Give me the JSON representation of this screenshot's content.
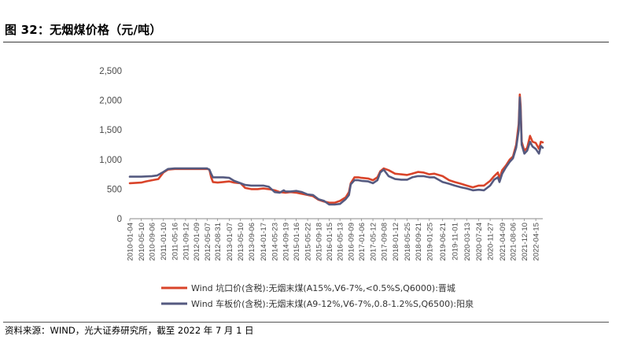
{
  "figure": {
    "title": "图 32：无烟煤价格（元/吨）",
    "source": "资料来源：WIND，光大证券研究所，截至 2022 年 7 月 1 日"
  },
  "chart_data": {
    "type": "line",
    "title": "",
    "xlabel": "",
    "ylabel": "",
    "ylim": [
      0,
      2500
    ],
    "yticks": [
      0,
      500,
      1000,
      1500,
      2000,
      2500
    ],
    "ytick_labels": [
      "0",
      "500",
      "1,000",
      "1,500",
      "2,000",
      "2,500"
    ],
    "grid": false,
    "legend_position": "bottom",
    "xticks": [
      "2010-01-04",
      "2010-05-10",
      "2010-09-06",
      "2011-01-10",
      "2011-05-16",
      "2011-09-12",
      "2012-01-09",
      "2012-05-07",
      "2012-08-31",
      "2013-01-07",
      "2013-05-10",
      "2013-09-06",
      "2014-01-17",
      "2014-05-23",
      "2014-09-19",
      "2015-01-16",
      "2015-05-22",
      "2015-09-18",
      "2016-01-15",
      "2016-05-13",
      "2016-09-09",
      "2017-01-06",
      "2017-05-12",
      "2017-09-08",
      "2018-01-12",
      "2018-05-25",
      "2018-09-21",
      "2019-01-25",
      "2019-06-21",
      "2019-11-01",
      "2020-03-13",
      "2020-07-24",
      "2020-11-27",
      "2021-04-09",
      "2021-08-06",
      "2021-12-10",
      "2022-04-15"
    ],
    "series": [
      {
        "name": "Wind 坑口价(含税):无烟末煤(A15%,V6-7%,<0.5%S,Q6000):晋城",
        "color": "#d9442a",
        "points": [
          [
            "2010-01-04",
            600
          ],
          [
            "2010-05-10",
            610
          ],
          [
            "2010-07-01",
            630
          ],
          [
            "2010-09-06",
            650
          ],
          [
            "2010-11-15",
            670
          ],
          [
            "2011-01-10",
            780
          ],
          [
            "2011-03-01",
            830
          ],
          [
            "2011-05-16",
            840
          ],
          [
            "2011-09-12",
            840
          ],
          [
            "2012-01-09",
            840
          ],
          [
            "2012-05-07",
            840
          ],
          [
            "2012-06-01",
            830
          ],
          [
            "2012-06-20",
            700
          ],
          [
            "2012-07-10",
            620
          ],
          [
            "2012-08-31",
            610
          ],
          [
            "2012-11-01",
            620
          ],
          [
            "2013-01-07",
            630
          ],
          [
            "2013-03-01",
            610
          ],
          [
            "2013-05-10",
            600
          ],
          [
            "2013-07-01",
            520
          ],
          [
            "2013-09-06",
            500
          ],
          [
            "2013-11-15",
            500
          ],
          [
            "2014-01-17",
            510
          ],
          [
            "2014-03-20",
            500
          ],
          [
            "2014-05-23",
            480
          ],
          [
            "2014-07-20",
            450
          ],
          [
            "2014-09-19",
            440
          ],
          [
            "2014-11-15",
            450
          ],
          [
            "2015-01-16",
            440
          ],
          [
            "2015-03-20",
            420
          ],
          [
            "2015-05-22",
            400
          ],
          [
            "2015-07-20",
            380
          ],
          [
            "2015-09-18",
            320
          ],
          [
            "2015-11-20",
            290
          ],
          [
            "2016-01-15",
            270
          ],
          [
            "2016-03-15",
            270
          ],
          [
            "2016-05-13",
            300
          ],
          [
            "2016-07-15",
            360
          ],
          [
            "2016-08-20",
            450
          ],
          [
            "2016-09-09",
            600
          ],
          [
            "2016-10-20",
            700
          ],
          [
            "2016-12-01",
            700
          ],
          [
            "2017-01-06",
            690
          ],
          [
            "2017-03-20",
            680
          ],
          [
            "2017-05-12",
            650
          ],
          [
            "2017-07-01",
            700
          ],
          [
            "2017-08-01",
            800
          ],
          [
            "2017-09-08",
            850
          ],
          [
            "2017-11-01",
            820
          ],
          [
            "2018-01-12",
            760
          ],
          [
            "2018-03-20",
            750
          ],
          [
            "2018-05-25",
            740
          ],
          [
            "2018-07-20",
            760
          ],
          [
            "2018-09-21",
            790
          ],
          [
            "2018-11-20",
            780
          ],
          [
            "2019-01-25",
            750
          ],
          [
            "2019-03-20",
            760
          ],
          [
            "2019-06-21",
            720
          ],
          [
            "2019-09-01",
            650
          ],
          [
            "2019-11-01",
            620
          ],
          [
            "2020-01-10",
            590
          ],
          [
            "2020-03-13",
            560
          ],
          [
            "2020-05-20",
            530
          ],
          [
            "2020-07-24",
            560
          ],
          [
            "2020-09-20",
            560
          ],
          [
            "2020-11-27",
            640
          ],
          [
            "2021-01-10",
            720
          ],
          [
            "2021-02-20",
            780
          ],
          [
            "2021-03-10",
            680
          ],
          [
            "2021-04-09",
            820
          ],
          [
            "2021-05-20",
            900
          ],
          [
            "2021-07-01",
            1000
          ],
          [
            "2021-08-06",
            1050
          ],
          [
            "2021-09-10",
            1250
          ],
          [
            "2021-10-08",
            1600
          ],
          [
            "2021-10-20",
            2100
          ],
          [
            "2021-10-30",
            1900
          ],
          [
            "2021-11-10",
            1300
          ],
          [
            "2021-12-10",
            1150
          ],
          [
            "2022-01-10",
            1200
          ],
          [
            "2022-02-10",
            1400
          ],
          [
            "2022-03-10",
            1300
          ],
          [
            "2022-04-15",
            1280
          ],
          [
            "2022-05-20",
            1180
          ],
          [
            "2022-06-10",
            1300
          ],
          [
            "2022-07-01",
            1290
          ]
        ]
      },
      {
        "name": "Wind 车板价(含税):无烟末煤(A9-12%,V6-7%,0.8-1.2%S,Q6500):阳泉",
        "color": "#555a80",
        "points": [
          [
            "2010-01-04",
            710
          ],
          [
            "2010-05-10",
            710
          ],
          [
            "2010-09-06",
            720
          ],
          [
            "2010-11-01",
            730
          ],
          [
            "2011-01-10",
            790
          ],
          [
            "2011-03-01",
            840
          ],
          [
            "2011-05-16",
            850
          ],
          [
            "2011-09-12",
            850
          ],
          [
            "2012-01-09",
            850
          ],
          [
            "2012-05-07",
            850
          ],
          [
            "2012-06-01",
            830
          ],
          [
            "2012-06-20",
            760
          ],
          [
            "2012-07-10",
            700
          ],
          [
            "2012-08-31",
            700
          ],
          [
            "2012-11-01",
            700
          ],
          [
            "2013-01-07",
            690
          ],
          [
            "2013-03-01",
            640
          ],
          [
            "2013-05-10",
            600
          ],
          [
            "2013-07-01",
            570
          ],
          [
            "2013-09-06",
            560
          ],
          [
            "2013-11-15",
            560
          ],
          [
            "2014-01-17",
            560
          ],
          [
            "2014-03-20",
            540
          ],
          [
            "2014-05-23",
            450
          ],
          [
            "2014-07-20",
            440
          ],
          [
            "2014-09-01",
            480
          ],
          [
            "2014-09-19",
            460
          ],
          [
            "2014-11-15",
            460
          ],
          [
            "2015-01-16",
            470
          ],
          [
            "2015-03-20",
            450
          ],
          [
            "2015-05-22",
            410
          ],
          [
            "2015-07-20",
            400
          ],
          [
            "2015-09-18",
            330
          ],
          [
            "2015-11-20",
            300
          ],
          [
            "2016-01-15",
            240
          ],
          [
            "2016-03-15",
            240
          ],
          [
            "2016-05-13",
            250
          ],
          [
            "2016-07-15",
            330
          ],
          [
            "2016-08-20",
            400
          ],
          [
            "2016-09-09",
            580
          ],
          [
            "2016-10-20",
            650
          ],
          [
            "2016-12-01",
            650
          ],
          [
            "2017-01-06",
            640
          ],
          [
            "2017-03-20",
            630
          ],
          [
            "2017-05-12",
            600
          ],
          [
            "2017-07-01",
            650
          ],
          [
            "2017-08-01",
            780
          ],
          [
            "2017-09-08",
            830
          ],
          [
            "2017-11-01",
            720
          ],
          [
            "2018-01-12",
            670
          ],
          [
            "2018-03-20",
            660
          ],
          [
            "2018-05-25",
            660
          ],
          [
            "2018-07-20",
            700
          ],
          [
            "2018-09-21",
            720
          ],
          [
            "2018-11-20",
            720
          ],
          [
            "2019-01-25",
            700
          ],
          [
            "2019-03-20",
            700
          ],
          [
            "2019-06-21",
            620
          ],
          [
            "2019-09-01",
            590
          ],
          [
            "2019-11-01",
            560
          ],
          [
            "2020-01-10",
            530
          ],
          [
            "2020-03-13",
            510
          ],
          [
            "2020-05-20",
            480
          ],
          [
            "2020-07-24",
            490
          ],
          [
            "2020-09-20",
            480
          ],
          [
            "2020-11-27",
            560
          ],
          [
            "2021-01-10",
            660
          ],
          [
            "2021-02-20",
            700
          ],
          [
            "2021-03-10",
            620
          ],
          [
            "2021-04-09",
            760
          ],
          [
            "2021-05-20",
            870
          ],
          [
            "2021-07-01",
            960
          ],
          [
            "2021-08-06",
            1020
          ],
          [
            "2021-09-10",
            1200
          ],
          [
            "2021-10-08",
            1500
          ],
          [
            "2021-10-20",
            2050
          ],
          [
            "2021-10-30",
            1800
          ],
          [
            "2021-11-10",
            1250
          ],
          [
            "2021-12-10",
            1100
          ],
          [
            "2022-01-10",
            1150
          ],
          [
            "2022-02-10",
            1300
          ],
          [
            "2022-03-10",
            1220
          ],
          [
            "2022-04-15",
            1180
          ],
          [
            "2022-05-20",
            1100
          ],
          [
            "2022-06-10",
            1230
          ],
          [
            "2022-07-01",
            1200
          ]
        ]
      }
    ]
  }
}
